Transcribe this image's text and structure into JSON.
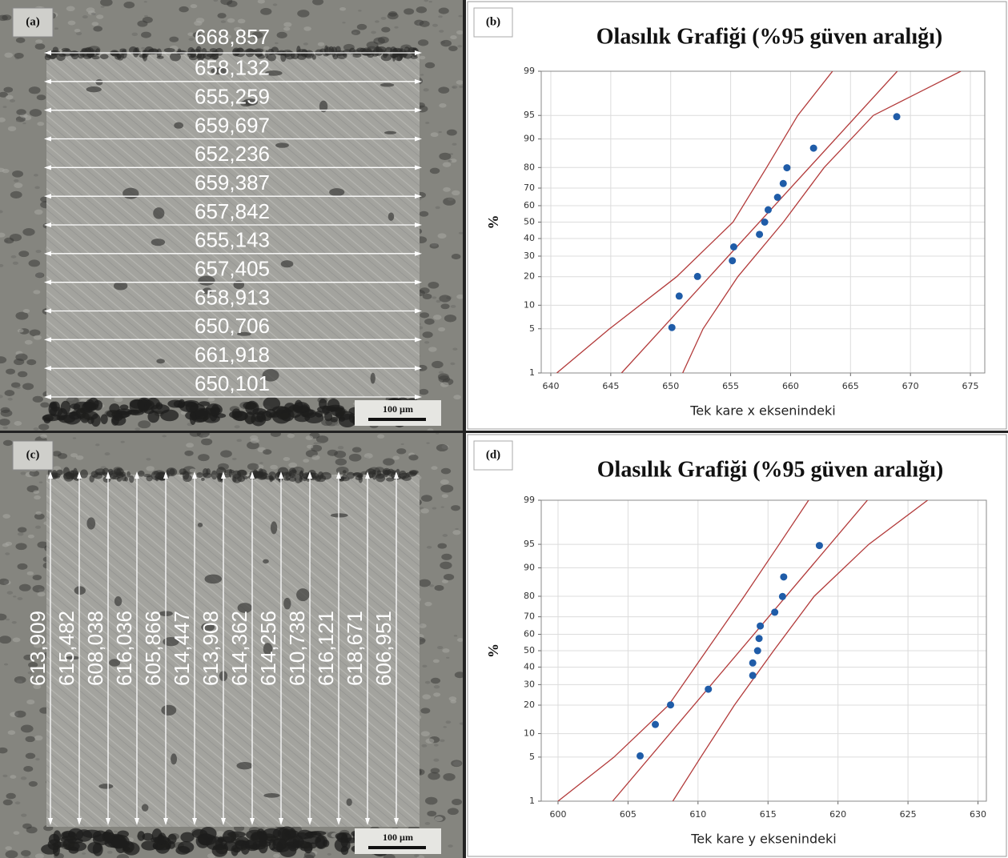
{
  "micrographs": [
    {
      "label": "(a)",
      "scale_bar": "100 µm",
      "direction": "horizontal",
      "measurements": [
        "668,857",
        "658,132",
        "655,259",
        "659,697",
        "652,236",
        "659,387",
        "657,842",
        "655,143",
        "657,405",
        "658,913",
        "650,706",
        "661,918",
        "650,101"
      ]
    },
    {
      "label": "(c)",
      "scale_bar": "100 µm",
      "direction": "vertical",
      "measurements": [
        "613,909",
        "615,482",
        "608,038",
        "616,036",
        "605,866",
        "614,447",
        "613,908",
        "614,362",
        "614,256",
        "610,738",
        "616,121",
        "618,671",
        "606,951"
      ]
    }
  ],
  "chart_data": [
    {
      "type": "probability",
      "panel_label": "(b)",
      "title": "Olasılık Grafiği (%95 güven aralığı)",
      "x_label": "Tek kare x eksenindeki",
      "y_label": "%",
      "yscale": "normal-probability",
      "grid": true,
      "xlim": [
        639.2,
        676.2
      ],
      "xticks": [
        640,
        645,
        650,
        655,
        660,
        665,
        670,
        675
      ],
      "ylim": [
        1,
        99
      ],
      "yticks": [
        1,
        5,
        10,
        20,
        30,
        40,
        50,
        60,
        70,
        80,
        90,
        95,
        99
      ],
      "point_color": "#1f5ca8",
      "line_color": "#b23a3a",
      "x": [
        650.101,
        650.706,
        652.236,
        655.143,
        655.259,
        657.405,
        657.842,
        658.132,
        658.913,
        659.387,
        659.697,
        661.918,
        668.857
      ],
      "y": [
        5.2,
        12.7,
        20.1,
        27.6,
        35.1,
        42.5,
        50,
        57.5,
        64.9,
        72.4,
        79.9,
        87.3,
        94.8
      ],
      "lines": [
        {
          "x": [
            640.5,
            644.9,
            650.5,
            655.2,
            658.0,
            660.6,
            663.5
          ],
          "y": [
            1,
            5,
            20,
            50,
            80,
            95,
            99
          ]
        },
        {
          "x": [
            645.9,
            668.9
          ],
          "y": [
            1,
            99
          ]
        },
        {
          "x": [
            651.0,
            652.7,
            655.6,
            659.4,
            662.8,
            666.9,
            674.2
          ],
          "y": [
            1,
            5,
            20,
            50,
            80,
            95,
            99
          ]
        }
      ]
    },
    {
      "type": "probability",
      "panel_label": "(d)",
      "title": "Olasılık Grafiği (%95 güven aralığı)",
      "x_label": "Tek kare y eksenindeki",
      "y_label": "%",
      "yscale": "normal-probability",
      "grid": true,
      "xlim": [
        598.8,
        630.6
      ],
      "xticks": [
        600,
        605,
        610,
        615,
        620,
        625,
        630
      ],
      "ylim": [
        1,
        99
      ],
      "yticks": [
        1,
        5,
        10,
        20,
        30,
        40,
        50,
        60,
        70,
        80,
        90,
        95,
        99
      ],
      "point_color": "#1f5ca8",
      "line_color": "#b23a3a",
      "x": [
        605.866,
        606.951,
        608.038,
        610.738,
        613.908,
        613.909,
        614.256,
        614.362,
        614.447,
        615.482,
        616.036,
        616.121,
        618.671
      ],
      "y": [
        5.2,
        12.7,
        20.1,
        27.6,
        35.1,
        42.5,
        50,
        57.5,
        64.9,
        72.4,
        79.9,
        87.3,
        94.8
      ],
      "lines": [
        {
          "x": [
            600.0,
            604.0,
            607.9,
            610.6,
            613.3,
            615.8,
            617.9
          ],
          "y": [
            1,
            5,
            20,
            50,
            80,
            95,
            99
          ]
        },
        {
          "x": [
            603.9,
            622.1
          ],
          "y": [
            1,
            99
          ]
        },
        {
          "x": [
            608.2,
            610.2,
            612.6,
            615.4,
            618.3,
            622.2,
            626.4
          ],
          "y": [
            1,
            5,
            20,
            50,
            80,
            95,
            99
          ]
        }
      ]
    }
  ]
}
